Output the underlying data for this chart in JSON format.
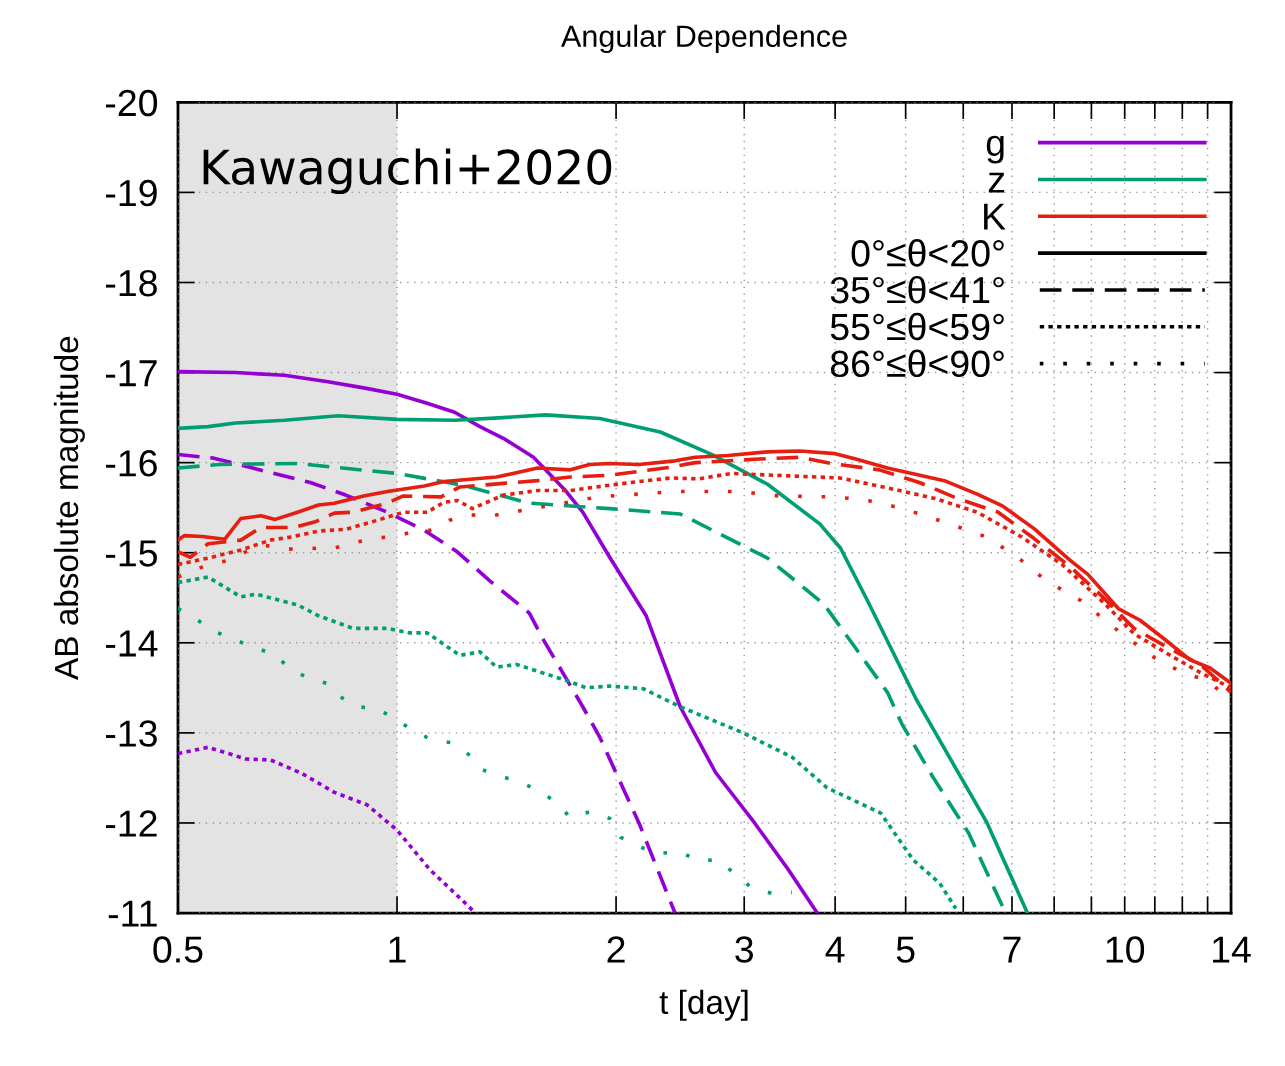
{
  "chart_data": {
    "type": "line",
    "title": "Angular Dependence",
    "xlabel": "t [day]",
    "ylabel": "AB absolute magnitude",
    "log": "x",
    "grid": true,
    "legend": "top right",
    "marker": "none",
    "xlim": [
      0.5,
      14
    ],
    "xticks": [
      0.5,
      1,
      2,
      3,
      4,
      5,
      {
        "value": 6,
        "label": null
      },
      7,
      {
        "value": 8,
        "label": null
      },
      {
        "value": 9,
        "label": null
      },
      10,
      {
        "value": 11,
        "label": null
      },
      {
        "value": 12,
        "label": null
      },
      {
        "value": 13,
        "label": null
      },
      14
    ],
    "ylim": [
      -11,
      -20
    ],
    "yticks": [
      -20,
      -19,
      -18,
      -17,
      -16,
      -15,
      -14,
      -13,
      -12,
      -11
    ],
    "bands": [
      {
        "axis": "x",
        "from": 0.5,
        "to": 1,
        "color": "#e3e3e3"
      }
    ],
    "annotations": [
      "Kawaguchi+2020",
      "0°≤θ<20°",
      "35°≤θ<41°",
      "55°≤θ<59°",
      "86°≤θ<90°"
    ],
    "series": [
      {
        "name": "g",
        "color": "#9400d3",
        "line_style": "solid",
        "x": [
          0.5,
          0.6,
          0.7,
          0.8,
          0.9,
          1.0,
          1.1,
          1.2,
          1.3,
          1.4,
          1.54,
          1.7,
          1.8,
          1.96,
          2.2,
          2.45,
          2.74,
          3.1,
          3.43,
          3.78
        ],
        "values": [
          -17.01,
          -17.0,
          -16.97,
          -16.9,
          -16.83,
          -16.76,
          -16.66,
          -16.56,
          -16.4,
          -16.27,
          -16.06,
          -15.7,
          -15.45,
          -14.95,
          -14.3,
          -13.29,
          -12.56,
          -12.0,
          -11.51,
          -11.0
        ]
      },
      {
        "color": "#9400d3",
        "line_style": "dashed",
        "x": [
          0.5,
          0.56,
          0.67,
          0.76,
          0.85,
          0.97,
          1.09,
          1.21,
          1.34,
          1.52,
          1.59,
          1.8,
          1.9,
          2.15,
          2.41
        ],
        "values": [
          -16.09,
          -16.05,
          -15.89,
          -15.78,
          -15.64,
          -15.45,
          -15.25,
          -15.01,
          -14.69,
          -14.33,
          -14.03,
          -13.29,
          -12.95,
          -12.0,
          -11.0
        ]
      },
      {
        "color": "#9400d3",
        "line_style": "dotted",
        "x": [
          0.5,
          0.55,
          0.62,
          0.67,
          0.74,
          0.82,
          0.91,
          1.0,
          1.11,
          1.23,
          1.27
        ],
        "values": [
          -12.77,
          -12.84,
          -12.71,
          -12.7,
          -12.55,
          -12.34,
          -12.2,
          -11.92,
          -11.48,
          -11.14,
          -11.03
        ]
      },
      {
        "name": "z",
        "color": "#009e73",
        "line_style": "solid",
        "x": [
          0.5,
          0.55,
          0.6,
          0.7,
          0.83,
          1.0,
          1.2,
          1.4,
          1.6,
          1.9,
          2.3,
          2.71,
          3.23,
          3.81,
          4.07,
          4.43,
          5.18,
          6.47,
          7.35
        ],
        "values": [
          -16.38,
          -16.4,
          -16.44,
          -16.47,
          -16.52,
          -16.48,
          -16.47,
          -16.5,
          -16.53,
          -16.49,
          -16.34,
          -16.09,
          -15.76,
          -15.32,
          -15.05,
          -14.47,
          -13.36,
          -12.0,
          -11.0
        ]
      },
      {
        "color": "#009e73",
        "line_style": "dashed",
        "x": [
          0.5,
          0.57,
          0.73,
          1.0,
          1.23,
          1.52,
          1.96,
          2.45,
          3.23,
          3.86,
          4.72,
          4.94,
          5.45,
          6.1,
          6.86
        ],
        "values": [
          -15.94,
          -15.98,
          -15.99,
          -15.88,
          -15.75,
          -15.55,
          -15.49,
          -15.43,
          -14.94,
          -14.43,
          -13.45,
          -13.1,
          -12.51,
          -11.89,
          -11.0
        ]
      },
      {
        "color": "#009e73",
        "line_style": "dotted",
        "x": [
          0.5,
          0.55,
          0.61,
          0.64,
          0.73,
          0.78,
          0.87,
          0.97,
          1.04,
          1.1,
          1.22,
          1.3,
          1.37,
          1.46,
          1.71,
          1.82,
          1.96,
          2.18,
          2.45,
          2.99,
          3.49,
          3.9,
          4.62,
          5.12,
          5.57,
          5.86
        ],
        "values": [
          -14.67,
          -14.73,
          -14.51,
          -14.54,
          -14.42,
          -14.3,
          -14.16,
          -14.16,
          -14.11,
          -14.11,
          -13.86,
          -13.9,
          -13.73,
          -13.76,
          -13.58,
          -13.5,
          -13.52,
          -13.49,
          -13.29,
          -13.0,
          -12.73,
          -12.39,
          -12.11,
          -11.59,
          -11.33,
          -11.05
        ]
      },
      {
        "color": "#009e73",
        "line_style": "loosely dotted",
        "x": [
          0.5,
          0.53,
          0.56,
          0.6,
          0.64,
          0.68,
          0.71,
          0.75,
          0.8,
          0.84,
          0.88,
          0.94,
          1.0,
          1.06,
          1.12,
          1.19,
          1.26,
          1.31,
          1.4,
          1.49,
          1.58,
          1.66,
          1.73,
          1.85,
          1.96,
          2.03,
          2.15,
          2.27,
          2.45,
          2.59,
          2.76,
          2.93,
          3.07,
          3.27,
          3.49
        ],
        "values": [
          -14.38,
          -14.26,
          -14.13,
          -14.03,
          -13.94,
          -13.87,
          -13.72,
          -13.62,
          -13.55,
          -13.39,
          -13.29,
          -13.27,
          -13.14,
          -13.01,
          -12.92,
          -12.89,
          -12.75,
          -12.59,
          -12.51,
          -12.44,
          -12.34,
          -12.22,
          -12.06,
          -12.13,
          -12.05,
          -11.84,
          -11.74,
          -11.66,
          -11.68,
          -11.58,
          -11.59,
          -11.42,
          -11.28,
          -11.22,
          -11.23
        ]
      },
      {
        "name": "K",
        "color": "#e51e10",
        "line_style": "solid",
        "x": [
          0.5,
          0.51,
          0.54,
          0.58,
          0.61,
          0.65,
          0.68,
          0.73,
          0.78,
          0.82,
          0.9,
          0.97,
          1.09,
          1.16,
          1.37,
          1.56,
          1.73,
          1.84,
          1.96,
          2.15,
          2.41,
          2.57,
          2.85,
          3.23,
          3.58,
          4.0,
          4.27,
          4.72,
          5.65,
          6.27,
          6.79,
          7.5,
          8.4,
          8.9,
          9.8,
          10.5,
          11.3,
          12.3,
          13.1,
          14
        ],
        "values": [
          -15.14,
          -15.19,
          -15.18,
          -15.15,
          -15.38,
          -15.41,
          -15.37,
          -15.45,
          -15.53,
          -15.55,
          -15.63,
          -15.68,
          -15.74,
          -15.79,
          -15.84,
          -15.94,
          -15.92,
          -15.98,
          -15.99,
          -15.98,
          -16.02,
          -16.06,
          -16.08,
          -16.12,
          -16.13,
          -16.1,
          -16.04,
          -15.94,
          -15.8,
          -15.65,
          -15.52,
          -15.27,
          -14.92,
          -14.76,
          -14.38,
          -14.25,
          -14.05,
          -13.81,
          -13.72,
          -13.55
        ]
      },
      {
        "color": "#e51e10",
        "line_style": "dashed",
        "x": [
          0.5,
          0.52,
          0.55,
          0.61,
          0.65,
          0.72,
          0.77,
          0.82,
          0.87,
          0.97,
          1.02,
          1.15,
          1.22,
          1.4,
          1.56,
          1.73,
          1.96,
          2.38,
          2.57,
          3.15,
          3.58,
          3.95,
          4.6,
          5.22,
          5.9,
          6.7,
          7.5,
          8.4,
          9.3,
          10.3,
          11.5,
          12.7,
          14
        ],
        "values": [
          -15.01,
          -14.95,
          -15.1,
          -15.14,
          -15.28,
          -15.28,
          -15.34,
          -15.44,
          -15.45,
          -15.55,
          -15.63,
          -15.62,
          -15.73,
          -15.77,
          -15.8,
          -15.84,
          -15.86,
          -15.95,
          -16.0,
          -16.04,
          -16.06,
          -15.99,
          -15.92,
          -15.78,
          -15.6,
          -15.45,
          -15.16,
          -14.85,
          -14.52,
          -14.16,
          -13.94,
          -13.76,
          -13.45
        ]
      },
      {
        "color": "#e51e10",
        "line_style": "dotted",
        "x": [
          0.5,
          0.55,
          0.61,
          0.67,
          0.71,
          0.78,
          0.85,
          0.94,
          1.02,
          1.1,
          1.16,
          1.21,
          1.27,
          1.4,
          1.56,
          1.73,
          1.96,
          2.15,
          2.38,
          2.6,
          2.88,
          3.3,
          4.06,
          4.72,
          5.5,
          6.27,
          7.2,
          8.2,
          9.4,
          10.3,
          11.5,
          12.7,
          14
        ],
        "values": [
          -14.87,
          -14.94,
          -15.03,
          -15.14,
          -15.17,
          -15.24,
          -15.26,
          -15.36,
          -15.45,
          -15.45,
          -15.56,
          -15.58,
          -15.49,
          -15.64,
          -15.69,
          -15.69,
          -15.75,
          -15.79,
          -15.83,
          -15.82,
          -15.88,
          -15.86,
          -15.83,
          -15.72,
          -15.6,
          -15.45,
          -15.18,
          -14.87,
          -14.43,
          -14.1,
          -13.87,
          -13.67,
          -13.5
        ]
      },
      {
        "color": "#e51e10",
        "line_style": "loosely dotted",
        "x": [
          0.5,
          0.53,
          0.56,
          0.59,
          0.63,
          0.66,
          0.71,
          0.76,
          0.81,
          0.87,
          0.93,
          0.99,
          1.05,
          1.11,
          1.18,
          1.26,
          1.35,
          1.44,
          1.64,
          1.89,
          2.41,
          2.95,
          3.35,
          3.95,
          4.38,
          4.96,
          5.65,
          6.43,
          7.1,
          7.8,
          8.7,
          9.7,
          10.9,
          12.0,
          13.0,
          14
        ],
        "values": [
          -14.73,
          -14.82,
          -14.88,
          -14.92,
          -15.04,
          -15.08,
          -15.04,
          -15.05,
          -15.04,
          -15.11,
          -15.16,
          -15.18,
          -15.23,
          -15.25,
          -15.36,
          -15.42,
          -15.41,
          -15.45,
          -15.53,
          -15.62,
          -15.68,
          -15.68,
          -15.63,
          -15.62,
          -15.59,
          -15.49,
          -15.34,
          -15.18,
          -14.96,
          -14.69,
          -14.47,
          -14.16,
          -13.85,
          -13.67,
          -13.58,
          -13.36
        ]
      }
    ]
  }
}
